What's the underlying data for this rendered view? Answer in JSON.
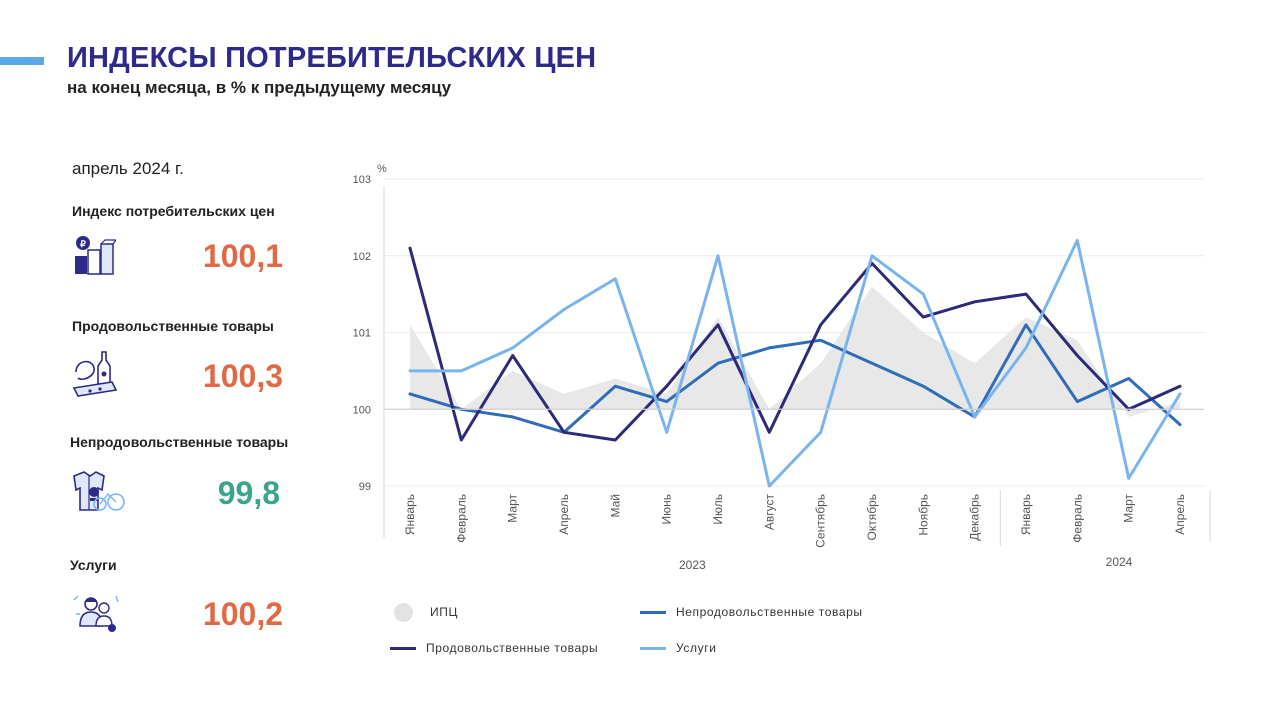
{
  "header": {
    "title": "ИНДЕКСЫ ПОТРЕБИТЕЛЬСКИХ ЦЕН",
    "subtitle": "на конец месяца, в % к предыдущему месяцу"
  },
  "panel": {
    "period": "апрель 2024 г.",
    "indicators": [
      {
        "label": "Индекс потребительских цен",
        "value": "100,1",
        "color": "#e06a45",
        "icon": "coins-boxes-icon"
      },
      {
        "label": "Продовольственные товары",
        "value": "100,3",
        "color": "#e06a45",
        "icon": "food-products-icon"
      },
      {
        "label": "Непродовольственные товары",
        "value": "99,8",
        "color": "#3aa58c",
        "icon": "non-food-products-icon"
      },
      {
        "label": "Услуги",
        "value": "100,2",
        "color": "#e06a45",
        "icon": "services-icon"
      }
    ]
  },
  "chart_data": {
    "type": "line",
    "ylabel": "%",
    "ylim": [
      99,
      103
    ],
    "yticks": [
      "99",
      "100",
      "101",
      "102",
      "103"
    ],
    "baseline": 100,
    "categories": [
      "Январь",
      "Февраль",
      "Март",
      "Апрель",
      "Май",
      "Июнь",
      "Июль",
      "Август",
      "Сентябрь",
      "Октябрь",
      "Ноябрь",
      "Декабрь",
      "Январь",
      "Февраль",
      "Март",
      "Апрель"
    ],
    "year_groups": [
      {
        "label": "2023",
        "start": 0,
        "end": 11
      },
      {
        "label": "2024",
        "start": 12,
        "end": 15
      }
    ],
    "series": [
      {
        "name": "ИПЦ",
        "kind": "area",
        "color": "#e8e8e8",
        "values": [
          101.1,
          100.0,
          100.5,
          100.2,
          100.4,
          100.2,
          101.2,
          100.0,
          100.6,
          101.6,
          101.0,
          100.6,
          101.2,
          100.9,
          99.9,
          100.1
        ]
      },
      {
        "name": "Непродовольственные товары",
        "kind": "line",
        "color": "#2f6db8",
        "values": [
          100.2,
          100.0,
          99.9,
          99.7,
          100.3,
          100.1,
          100.6,
          100.8,
          100.9,
          100.6,
          100.3,
          99.9,
          101.1,
          100.1,
          100.4,
          99.8
        ]
      },
      {
        "name": "Продовольственные товары",
        "kind": "line",
        "color": "#2e2a7a",
        "values": [
          102.1,
          99.6,
          100.7,
          99.7,
          99.6,
          100.3,
          101.1,
          99.7,
          101.1,
          101.9,
          101.2,
          101.4,
          101.5,
          100.7,
          100.0,
          100.3
        ]
      },
      {
        "name": "Услуги",
        "kind": "line",
        "color": "#7ab4ef",
        "values": [
          100.5,
          100.5,
          100.8,
          101.3,
          101.7,
          99.7,
          102.0,
          99.0,
          99.7,
          102.0,
          101.5,
          99.9,
          100.8,
          102.2,
          99.1,
          100.2
        ]
      }
    ],
    "legend": [
      {
        "name": "ИПЦ",
        "marker": "circle",
        "color": "#e3e3e3"
      },
      {
        "name": "Непродовольственные  товары",
        "marker": "line",
        "color": "#2f6db8"
      },
      {
        "name": "Продовольственные  товары",
        "marker": "line",
        "color": "#2e2a7a"
      },
      {
        "name": "Услуги",
        "marker": "line",
        "color": "#7ab4ef"
      }
    ],
    "legend_position": "bottom",
    "grid": true
  }
}
